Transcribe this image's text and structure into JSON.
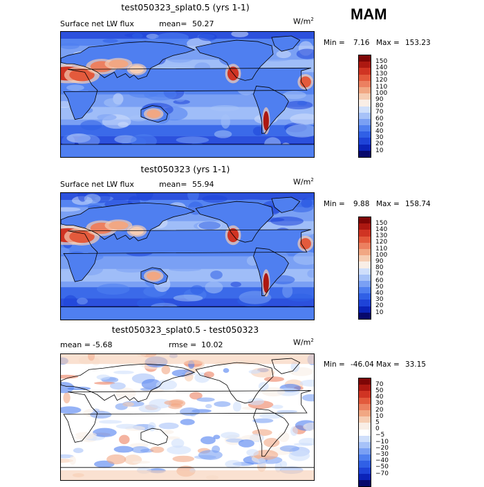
{
  "season": "MAM",
  "panels": [
    {
      "title": "test050323_splat0.5 (yrs 1-1)",
      "left_text": "Surface net LW flux",
      "mid_label": "mean=",
      "mid_value": "50.27",
      "units": "W/m",
      "units_exp": "2",
      "min_label": "Min =",
      "min_value": "7.16",
      "max_label": "Max =",
      "max_value": "153.23",
      "map_style": "positive",
      "colorbar": {
        "colors": [
          "#07086b",
          "#0b23b8",
          "#1e43d8",
          "#3060e6",
          "#4f7ff0",
          "#7aa0f4",
          "#a6c2f8",
          "#cfdffb",
          "#f9eee6",
          "#f6cdb3",
          "#f1a783",
          "#ec8060",
          "#e35a3c",
          "#d03423",
          "#ad1811",
          "#7e0606"
        ],
        "labels": [
          "150",
          "140",
          "130",
          "120",
          "110",
          "100",
          "90",
          "80",
          "70",
          "60",
          "50",
          "40",
          "30",
          "20",
          "10"
        ]
      }
    },
    {
      "title": "test050323 (yrs 1-1)",
      "left_text": "Surface net LW flux",
      "mid_label": "mean=",
      "mid_value": "55.94",
      "units": "W/m",
      "units_exp": "2",
      "min_label": "Min =",
      "min_value": "9.88",
      "max_label": "Max =",
      "max_value": "158.74",
      "map_style": "positive",
      "colorbar": {
        "colors": [
          "#07086b",
          "#0b23b8",
          "#1e43d8",
          "#3060e6",
          "#4f7ff0",
          "#7aa0f4",
          "#a6c2f8",
          "#cfdffb",
          "#f9eee6",
          "#f6cdb3",
          "#f1a783",
          "#ec8060",
          "#e35a3c",
          "#d03423",
          "#ad1811",
          "#7e0606"
        ],
        "labels": [
          "150",
          "140",
          "130",
          "120",
          "110",
          "100",
          "90",
          "80",
          "70",
          "60",
          "50",
          "40",
          "30",
          "20",
          "10"
        ]
      }
    },
    {
      "title": "test050323_splat0.5 - test050323",
      "left_text": "mean =",
      "left_value": "-5.68",
      "mid_label": "rmse =",
      "mid_value": "10.02",
      "units": "W/m",
      "units_exp": "2",
      "min_label": "Min =",
      "min_value": "-46.04",
      "max_label": "Max =",
      "max_value": "33.15",
      "map_style": "diff",
      "colorbar": {
        "colors": [
          "#07086b",
          "#0b23b8",
          "#1e43d8",
          "#3060e6",
          "#4f7ff0",
          "#7aa0f4",
          "#a6c2f8",
          "#cfdffb",
          "#ffffff",
          "#f9eee6",
          "#f6cdb3",
          "#f1a783",
          "#ec8060",
          "#e35a3c",
          "#d03423",
          "#ad1811",
          "#7e0606"
        ],
        "labels": [
          "70",
          "50",
          "40",
          "30",
          "20",
          "10",
          "5",
          "0",
          "−5",
          "−10",
          "−20",
          "−30",
          "−40",
          "−50",
          "−70"
        ]
      }
    }
  ]
}
